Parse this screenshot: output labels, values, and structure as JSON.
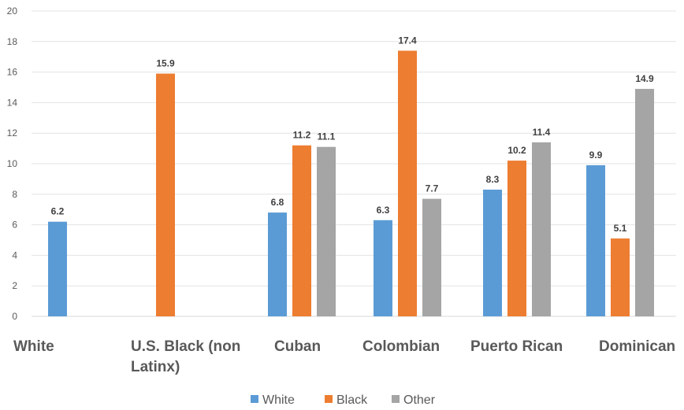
{
  "chart_data": {
    "type": "bar",
    "title": "",
    "xlabel": "",
    "ylabel": "",
    "ylim": [
      0,
      20
    ],
    "y_ticks": [
      0,
      2,
      4,
      6,
      8,
      10,
      12,
      14,
      16,
      18,
      20
    ],
    "grid": true,
    "legend_position": "bottom-center",
    "categories": [
      [
        "White"
      ],
      [
        "U.S. Black (non",
        "Latinx)"
      ],
      [
        "Cuban"
      ],
      [
        "Colombian"
      ],
      [
        "Puerto Rican"
      ],
      [
        "Dominican"
      ]
    ],
    "series": [
      {
        "name": "White",
        "color": "#5B9BD5",
        "values": [
          6.2,
          null,
          6.8,
          6.3,
          8.3,
          9.9
        ]
      },
      {
        "name": "Black",
        "color": "#ED7D31",
        "values": [
          null,
          15.9,
          11.2,
          17.4,
          10.2,
          5.1
        ]
      },
      {
        "name": "Other",
        "color": "#A5A5A5",
        "values": [
          null,
          null,
          11.1,
          7.7,
          11.4,
          14.9
        ]
      }
    ]
  }
}
